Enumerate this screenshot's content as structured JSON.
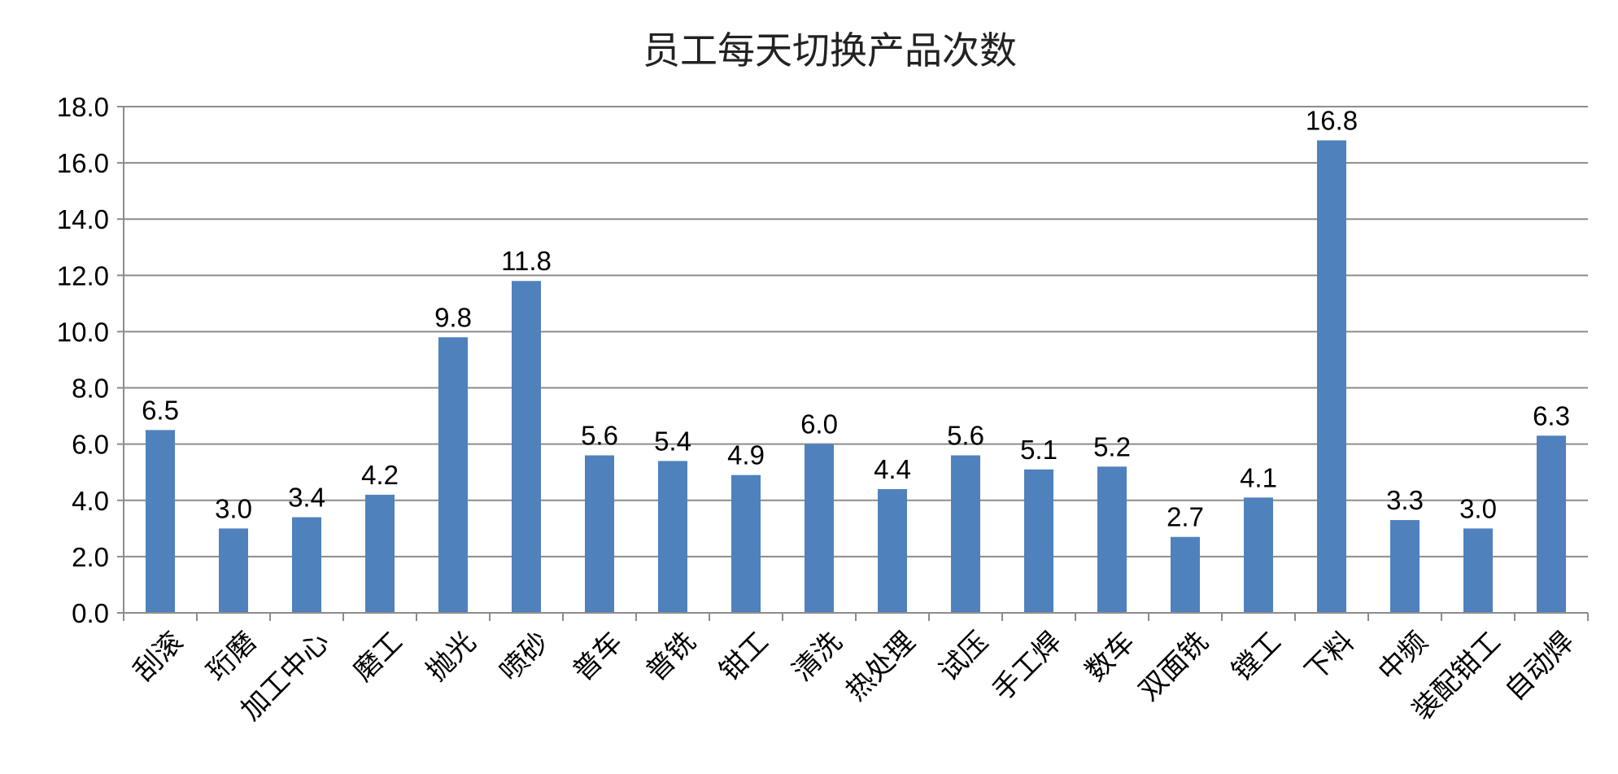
{
  "chart_data": {
    "type": "bar",
    "title": "员工每天切换产品次数",
    "xlabel": "",
    "ylabel": "",
    "ylim": [
      0,
      18
    ],
    "yticks": [
      "0.0",
      "2.0",
      "4.0",
      "6.0",
      "8.0",
      "10.0",
      "12.0",
      "14.0",
      "16.0",
      "18.0"
    ],
    "grid": true,
    "legend": "none",
    "bar_color": "#4F81BD",
    "categories": [
      "刮滚",
      "珩磨",
      "加工中心",
      "磨工",
      "抛光",
      "喷砂",
      "普车",
      "普铣",
      "钳工",
      "清洗",
      "热处理",
      "试压",
      "手工焊",
      "数车",
      "双面铣",
      "镗工",
      "下料",
      "中频",
      "装配钳工",
      "自动焊"
    ],
    "values": [
      6.5,
      3.0,
      3.4,
      4.2,
      9.8,
      11.8,
      5.6,
      5.4,
      4.9,
      6.0,
      4.4,
      5.6,
      5.1,
      5.2,
      2.7,
      4.1,
      16.8,
      3.3,
      3.0,
      6.3
    ],
    "data_labels": [
      "6.5",
      "3.0",
      "3.4",
      "4.2",
      "9.8",
      "11.8",
      "5.6",
      "5.4",
      "4.9",
      "6.0",
      "4.4",
      "5.6",
      "5.1",
      "5.2",
      "2.7",
      "4.1",
      "16.8",
      "3.3",
      "3.0",
      "6.3"
    ]
  }
}
